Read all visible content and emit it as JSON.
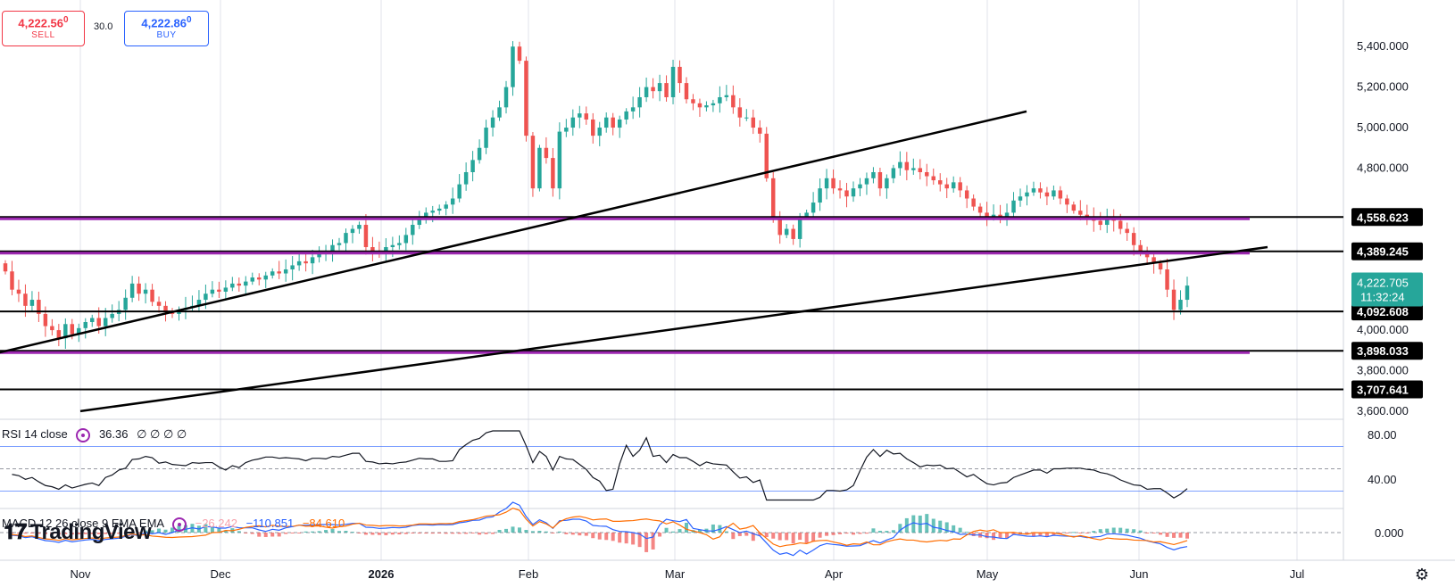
{
  "trade": {
    "sell_price": "4,222.56",
    "sell_sup": "0",
    "sell_label": "SELL",
    "buy_price": "4,222.86",
    "buy_sup": "0",
    "buy_label": "BUY",
    "spread": "30.0"
  },
  "rsi": {
    "label": "RSI 14 close",
    "value": "36.36",
    "extras": "∅ ∅ ∅ ∅"
  },
  "macd": {
    "label": "MACD 12 26 close 9 EMA EMA",
    "v1": "−26.242",
    "v2": "−110.851",
    "v3": "−84.610"
  },
  "brand": "TradingView",
  "colors": {
    "up": "#26a69a",
    "down": "#ef5350",
    "purple": "#9c27b0",
    "rsi_band": "#2962ff",
    "macd_line": "#2962ff",
    "signal_line": "#ff6d00"
  },
  "chart_data": {
    "type": "candlestick",
    "price_axis": {
      "ticks": [
        {
          "value": 3600,
          "label": "3,600.000"
        },
        {
          "value": 3800,
          "label": "3,800.000"
        },
        {
          "value": 4000,
          "label": "4,000.000"
        },
        {
          "value": 4800,
          "label": "4,800.000"
        },
        {
          "value": 5000,
          "label": "5,000.000"
        },
        {
          "value": 5200,
          "label": "5,200.000"
        },
        {
          "value": 5400,
          "label": "5,400.000"
        }
      ],
      "ylim": [
        3560,
        5630
      ]
    },
    "time_axis": [
      "Nov",
      "Dec",
      "2026",
      "Feb",
      "Mar",
      "Apr",
      "May",
      "Jun",
      "Jul"
    ],
    "current_price": {
      "value": 4222.705,
      "label": "4,222.705",
      "countdown": "11:32:24"
    },
    "horizontal_levels": [
      {
        "value": 4558.623,
        "label": "4,558.623"
      },
      {
        "value": 4389.245,
        "label": "4,389.245"
      },
      {
        "value": 4092.608,
        "label": "4,092.608"
      },
      {
        "value": 3898.033,
        "label": "3,898.033"
      },
      {
        "value": 3707.641,
        "label": "3,707.641"
      }
    ],
    "purple_levels": [
      4558.623,
      4389.245,
      3898.033
    ],
    "trendlines": [
      {
        "from": [
          "2025-10-01",
          3820
        ],
        "to": [
          "2026-05-10",
          5080
        ]
      },
      {
        "from": [
          "2025-11-01",
          3600
        ],
        "to": [
          "2026-06-19",
          4410
        ]
      }
    ],
    "closes": [
      4290,
      4200,
      4180,
      4120,
      4150,
      4080,
      4020,
      4000,
      3960,
      4030,
      3980,
      4010,
      4040,
      4060,
      4020,
      4060,
      4080,
      4100,
      4160,
      4230,
      4180,
      4200,
      4140,
      4120,
      4090,
      4080,
      4100,
      4110,
      4120,
      4150,
      4180,
      4200,
      4190,
      4210,
      4230,
      4220,
      4240,
      4260,
      4250,
      4270,
      4290,
      4280,
      4300,
      4320,
      4340,
      4330,
      4360,
      4380,
      4390,
      4420,
      4430,
      4480,
      4500,
      4520,
      4410,
      4390,
      4380,
      4410,
      4420,
      4430,
      4470,
      4520,
      4560,
      4580,
      4590,
      4600,
      4620,
      4650,
      4720,
      4780,
      4840,
      4900,
      5000,
      5050,
      5100,
      5200,
      5400,
      5330,
      4960,
      4700,
      4900,
      4850,
      4700,
      4980,
      5000,
      5050,
      5070,
      5040,
      4960,
      5000,
      5050,
      5000,
      5040,
      5080,
      5100,
      5150,
      5200,
      5180,
      5220,
      5150,
      5300,
      5220,
      5140,
      5120,
      5100,
      5110,
      5120,
      5150,
      5160,
      5100,
      5050,
      5050,
      5000,
      4970,
      4750,
      4560,
      4470,
      4500,
      4450,
      4560,
      4580,
      4630,
      4700,
      4750,
      4700,
      4690,
      4660,
      4700,
      4720,
      4750,
      4780,
      4700,
      4750,
      4800,
      4830,
      4790,
      4800,
      4780,
      4760,
      4740,
      4720,
      4700,
      4730,
      4690,
      4650,
      4610,
      4580,
      4560,
      4570,
      4560,
      4580,
      4640,
      4660,
      4680,
      4700,
      4680,
      4660,
      4690,
      4650,
      4620,
      4590,
      4570,
      4560,
      4540,
      4520,
      4560,
      4540,
      4500,
      4480,
      4420,
      4390,
      4360,
      4330,
      4300,
      4200,
      4100,
      4150,
      4220
    ],
    "rsi": {
      "ylim": [
        0,
        100
      ],
      "ticks": [
        {
          "value": 80,
          "label": "80.00"
        },
        {
          "value": 40,
          "label": "40.00"
        }
      ],
      "bands": [
        70,
        30
      ],
      "midline": 50
    },
    "macd": {
      "ticks": [
        {
          "value": 0,
          "label": "0.000"
        }
      ]
    }
  }
}
